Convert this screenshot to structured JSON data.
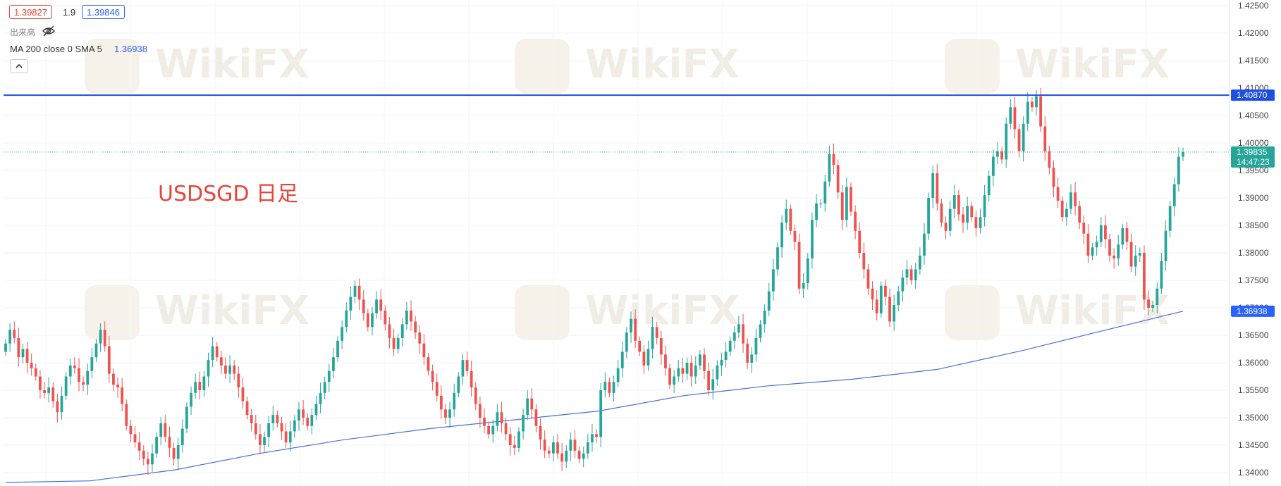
{
  "header": {
    "price_pill_red": "1.39827",
    "spread": "1.9",
    "price_pill_blue": "1.39846",
    "volume_label": "出来高",
    "indicator_label": "MA 200 close 0 SMA 5",
    "indicator_value": "1.36938",
    "collapse_icon": "chevron-up-icon"
  },
  "annotation": {
    "text": "USDSGD 日足",
    "color": "#e5473b"
  },
  "watermark": {
    "text": "WikiFX"
  },
  "price_labels": {
    "resistance": "1.40870",
    "last_price": "1.39835",
    "countdown": "14:47:23",
    "ma_value": "1.36938"
  },
  "colors": {
    "up": "#26a69a",
    "down": "#ef5350",
    "ma": "#4a6fd8",
    "resistance": "#1f4fe0",
    "last_price": "#26a69a",
    "pill_red": "#e5473b",
    "pill_blue": "#2962ff"
  },
  "chart_data": {
    "type": "candlestick",
    "symbol": "USDSGD",
    "timeframe": "日足",
    "ylim": [
      1.3375,
      1.4265
    ],
    "y_ticks": [
      "1.34000",
      "1.34500",
      "1.35000",
      "1.35500",
      "1.36000",
      "1.36500",
      "1.37000",
      "1.37500",
      "1.38000",
      "1.38500",
      "1.39000",
      "1.39500",
      "1.40000",
      "1.40500",
      "1.41000",
      "1.41500",
      "1.42000",
      "1.42500"
    ],
    "y_tick_values": [
      1.34,
      1.345,
      1.35,
      1.355,
      1.36,
      1.365,
      1.37,
      1.375,
      1.38,
      1.385,
      1.39,
      1.395,
      1.4,
      1.405,
      1.41,
      1.415,
      1.42,
      1.425
    ],
    "horizontal_line": 1.4087,
    "last_price": 1.39835,
    "closes": [
      1.3635,
      1.366,
      1.3645,
      1.361,
      1.3625,
      1.36,
      1.359,
      1.3575,
      1.355,
      1.3545,
      1.3555,
      1.353,
      1.351,
      1.354,
      1.3575,
      1.3595,
      1.359,
      1.3565,
      1.356,
      1.3585,
      1.361,
      1.3635,
      1.366,
      1.363,
      1.358,
      1.356,
      1.3555,
      1.3525,
      1.3485,
      1.347,
      1.3455,
      1.344,
      1.3425,
      1.3415,
      1.3435,
      1.3465,
      1.349,
      1.3465,
      1.3445,
      1.3425,
      1.345,
      1.348,
      1.352,
      1.3545,
      1.3565,
      1.355,
      1.3575,
      1.3605,
      1.363,
      1.361,
      1.3595,
      1.358,
      1.3595,
      1.358,
      1.3555,
      1.353,
      1.3505,
      1.349,
      1.347,
      1.345,
      1.3465,
      1.349,
      1.3505,
      1.349,
      1.3475,
      1.3455,
      1.3475,
      1.3495,
      1.3515,
      1.35,
      1.3485,
      1.3505,
      1.3525,
      1.3545,
      1.3565,
      1.3585,
      1.361,
      1.364,
      1.3665,
      1.3695,
      1.372,
      1.374,
      1.3715,
      1.369,
      1.3665,
      1.369,
      1.3715,
      1.3695,
      1.367,
      1.3645,
      1.3625,
      1.3645,
      1.367,
      1.3695,
      1.3675,
      1.3655,
      1.3635,
      1.361,
      1.3585,
      1.3565,
      1.354,
      1.3515,
      1.35,
      1.3515,
      1.3545,
      1.3575,
      1.3605,
      1.3585,
      1.3555,
      1.3525,
      1.35,
      1.3485,
      1.347,
      1.3485,
      1.351,
      1.349,
      1.347,
      1.345,
      1.3445,
      1.3475,
      1.3505,
      1.3535,
      1.3515,
      1.3485,
      1.346,
      1.344,
      1.3435,
      1.3455,
      1.3435,
      1.342,
      1.344,
      1.346,
      1.344,
      1.3425,
      1.3435,
      1.3455,
      1.347,
      1.3465,
      1.355,
      1.3565,
      1.3545,
      1.3565,
      1.359,
      1.362,
      1.3655,
      1.368,
      1.364,
      1.362,
      1.3595,
      1.3625,
      1.3665,
      1.3645,
      1.3615,
      1.359,
      1.356,
      1.3575,
      1.359,
      1.358,
      1.36,
      1.3575,
      1.3595,
      1.3615,
      1.3585,
      1.355,
      1.357,
      1.3595,
      1.3605,
      1.362,
      1.364,
      1.3655,
      1.367,
      1.3635,
      1.36,
      1.3615,
      1.3645,
      1.367,
      1.3695,
      1.373,
      1.377,
      1.381,
      1.3855,
      1.388,
      1.384,
      1.382,
      1.3735,
      1.3745,
      1.379,
      1.386,
      1.389,
      1.389,
      1.393,
      1.398,
      1.396,
      1.391,
      1.386,
      1.392,
      1.3875,
      1.384,
      1.38,
      1.377,
      1.3735,
      1.3715,
      1.369,
      1.374,
      1.372,
      1.3675,
      1.3705,
      1.373,
      1.3755,
      1.377,
      1.375,
      1.377,
      1.3795,
      1.3835,
      1.39,
      1.3945,
      1.389,
      1.3855,
      1.384,
      1.388,
      1.3905,
      1.387,
      1.3855,
      1.3885,
      1.3865,
      1.3845,
      1.3865,
      1.3905,
      1.394,
      1.3975,
      1.3985,
      1.397,
      1.4035,
      1.4065,
      1.4025,
      1.3985,
      1.4035,
      1.4075,
      1.4065,
      1.4085,
      1.403,
      1.3985,
      1.3955,
      1.392,
      1.3895,
      1.3865,
      1.388,
      1.391,
      1.3885,
      1.3855,
      1.3835,
      1.3795,
      1.381,
      1.382,
      1.385,
      1.3825,
      1.3795,
      1.379,
      1.3815,
      1.3845,
      1.382,
      1.3775,
      1.3795,
      1.38,
      1.3715,
      1.37,
      1.3705,
      1.3735,
      1.3785,
      1.384,
      1.3885,
      1.3925,
      1.3975,
      1.39835
    ],
    "ma_series": {
      "name": "MA 200 close",
      "start_value": 1.3382,
      "end_value": 1.36938,
      "points_x_index": [
        0,
        20,
        40,
        60,
        80,
        100,
        120,
        140,
        160,
        180,
        200,
        220,
        240,
        260,
        278
      ],
      "points_y": [
        1.3382,
        1.3385,
        1.3405,
        1.3435,
        1.346,
        1.348,
        1.3496,
        1.3512,
        1.354,
        1.3558,
        1.357,
        1.3588,
        1.3622,
        1.366,
        1.36938
      ]
    }
  }
}
